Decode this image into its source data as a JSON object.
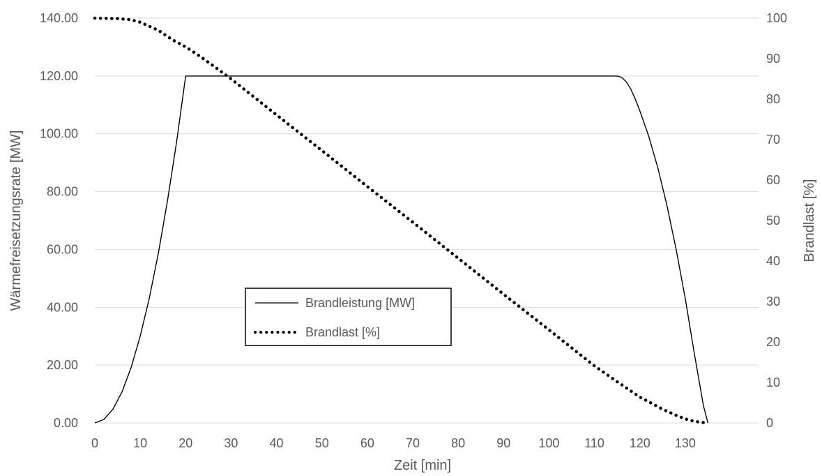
{
  "chart_data": {
    "type": "line",
    "xlabel": "Zeit [min]",
    "ylabel_left": "Wärmefreisetzungsrate [MW]",
    "ylabel_right": "Brandlast [%]",
    "x_ticks": [
      "0",
      "10",
      "20",
      "30",
      "40",
      "50",
      "60",
      "70",
      "80",
      "90",
      "100",
      "110",
      "120",
      "130"
    ],
    "y_left_ticks": [
      "0.00",
      "20.00",
      "40.00",
      "60.00",
      "80.00",
      "100.00",
      "120.00",
      "140.00"
    ],
    "y_right_ticks": [
      "0",
      "10",
      "20",
      "30",
      "40",
      "50",
      "60",
      "70",
      "80",
      "90",
      "100"
    ],
    "xlim": [
      0,
      140
    ],
    "ylim_left": [
      0,
      140
    ],
    "ylim_right": [
      0,
      100
    ],
    "grid": true,
    "legend_position": "center-left",
    "series": [
      {
        "name": "Brandleistung [MW]",
        "axis": "left",
        "style": "solid",
        "color": "#000000",
        "points": [
          [
            0,
            0
          ],
          [
            2,
            1.2
          ],
          [
            4,
            4.8
          ],
          [
            6,
            10.8
          ],
          [
            8,
            19.2
          ],
          [
            10,
            30
          ],
          [
            12,
            43.2
          ],
          [
            14,
            58.8
          ],
          [
            16,
            76.8
          ],
          [
            18,
            97.2
          ],
          [
            20,
            120
          ],
          [
            60,
            120
          ],
          [
            100,
            120
          ],
          [
            115,
            120
          ],
          [
            116,
            119.5
          ],
          [
            117,
            118
          ],
          [
            118,
            115.5
          ],
          [
            119,
            112
          ],
          [
            120,
            108
          ],
          [
            122,
            99
          ],
          [
            124,
            88
          ],
          [
            126,
            75
          ],
          [
            128,
            60
          ],
          [
            130,
            43
          ],
          [
            132,
            24
          ],
          [
            134,
            6
          ],
          [
            135,
            0
          ]
        ]
      },
      {
        "name": "Brandlast [%]",
        "axis": "right",
        "style": "dotted",
        "color": "#000000",
        "points": [
          [
            0,
            100
          ],
          [
            5,
            99.9
          ],
          [
            8,
            99.6
          ],
          [
            10,
            99
          ],
          [
            14,
            97
          ],
          [
            17,
            94.7
          ],
          [
            20,
            92.9
          ],
          [
            23,
            90.7
          ],
          [
            26,
            88.3
          ],
          [
            30,
            85
          ],
          [
            40,
            76.1
          ],
          [
            50,
            67.3
          ],
          [
            60,
            58.4
          ],
          [
            70,
            49.6
          ],
          [
            80,
            40.7
          ],
          [
            90,
            31.8
          ],
          [
            100,
            23
          ],
          [
            110,
            14.1
          ],
          [
            115,
            10.2
          ],
          [
            120,
            6.4
          ],
          [
            125,
            3.4
          ],
          [
            128,
            1.9
          ],
          [
            130,
            1
          ],
          [
            132,
            0.4
          ],
          [
            134,
            0.1
          ],
          [
            135,
            0
          ]
        ]
      }
    ]
  }
}
